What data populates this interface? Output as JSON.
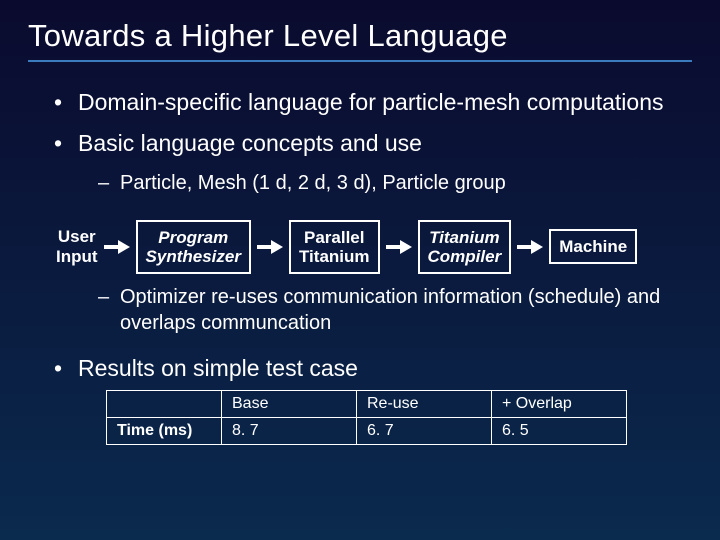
{
  "title": "Towards a Higher Level Language",
  "bullets": {
    "b1": "Domain-specific language for particle-mesh computations",
    "b2": "Basic language concepts and use",
    "b2a": "Particle, Mesh (1 d, 2 d, 3 d), Particle group",
    "b2b": "Optimizer re-uses communication information (schedule) and overlaps communcation",
    "b3": "Results on simple test case"
  },
  "flow": {
    "user_input": "User\nInput",
    "synth": "Program\nSynthesizer",
    "parallel": "Parallel\nTitanium",
    "compiler": "Titanium\nCompiler",
    "machine": "Machine"
  },
  "table": {
    "headers": [
      "",
      "Base",
      "Re-use",
      "+ Overlap"
    ],
    "row_label": "Time (ms)",
    "cells": [
      "8. 7",
      "6. 7",
      "6. 5"
    ]
  },
  "styling": {
    "background_gradient": [
      "#0a0a2e",
      "#0a1a3e",
      "#0a2a4e"
    ],
    "text_color": "#ffffff",
    "border_color": "#ffffff",
    "title_underline_color": "#3a7abd",
    "title_fontsize": 31,
    "bullet_l1_fontsize": 23,
    "bullet_l2_fontsize": 20,
    "flow_fontsize": 17,
    "table_fontsize": 16,
    "slide_width": 720,
    "slide_height": 540
  }
}
